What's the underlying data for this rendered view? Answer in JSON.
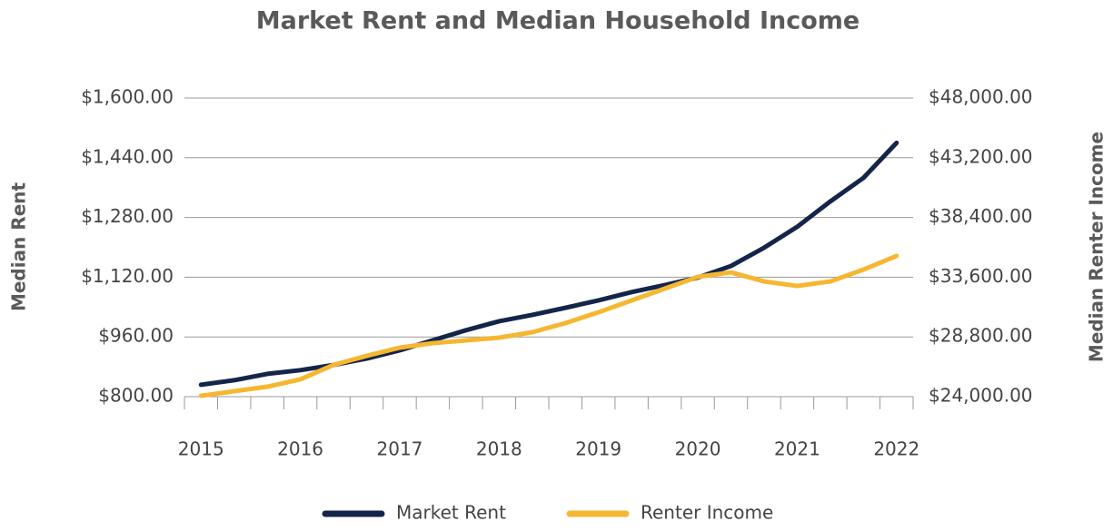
{
  "chart_data": {
    "type": "line",
    "title": "Market Rent and Median Household Income",
    "ylabel": "Median Rent",
    "y2label": "Median Renter Income",
    "categories": [
      "2015",
      null,
      null,
      "2016",
      null,
      null,
      "2017",
      null,
      null,
      "2018",
      null,
      null,
      "2019",
      null,
      null,
      "2020",
      null,
      null,
      "2021",
      null,
      null,
      "2022"
    ],
    "series": [
      {
        "name": "Market Rent",
        "color": "#14254a",
        "axis": "y",
        "values": [
          832,
          844,
          861,
          871,
          885,
          902,
          924,
          951,
          978,
          1002,
          1019,
          1038,
          1058,
          1080,
          1099,
          1119,
          1150,
          1199,
          1255,
          1323,
          1386,
          1480
        ]
      },
      {
        "name": "Renter Income",
        "color": "#f5b731",
        "axis": "y2",
        "values": [
          24070,
          24440,
          24800,
          25390,
          26550,
          27280,
          27940,
          28300,
          28520,
          28740,
          29180,
          29910,
          30780,
          31730,
          32680,
          33630,
          33990,
          33260,
          32900,
          33260,
          34210,
          35310
        ]
      }
    ],
    "ylim": [
      800,
      1600
    ],
    "yticks": [
      {
        "value": 800,
        "label": "$800.00"
      },
      {
        "value": 960,
        "label": "$960.00"
      },
      {
        "value": 1120,
        "label": "$1,120.00"
      },
      {
        "value": 1280,
        "label": "$1,280.00"
      },
      {
        "value": 1440,
        "label": "$1,440.00"
      },
      {
        "value": 1600,
        "label": "$1,600.00"
      }
    ],
    "y2lim": [
      24000,
      48000
    ],
    "y2ticks": [
      {
        "value": 24000,
        "label": "$24,000.00"
      },
      {
        "value": 28800,
        "label": "$28,800.00"
      },
      {
        "value": 33600,
        "label": "$33,600.00"
      },
      {
        "value": 38400,
        "label": "$38,400.00"
      },
      {
        "value": 43200,
        "label": "$43,200.00"
      },
      {
        "value": 48000,
        "label": "$48,000.00"
      }
    ],
    "grid": true,
    "legend": "bottom"
  }
}
